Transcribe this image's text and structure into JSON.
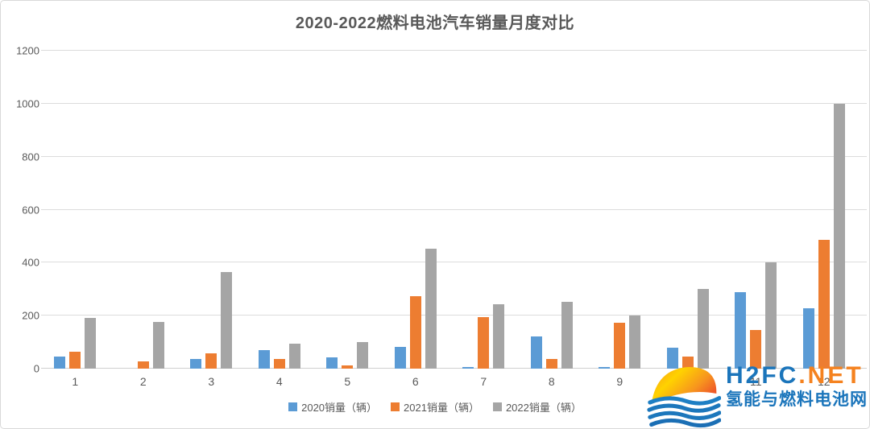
{
  "title": "2020-2022燃料电池汽车销量月度对比",
  "chart_data": {
    "type": "bar",
    "title": "2020-2022燃料电池汽车销量月度对比",
    "categories": [
      "1",
      "2",
      "3",
      "4",
      "5",
      "6",
      "7",
      "8",
      "9",
      "10",
      "11",
      "12"
    ],
    "series": [
      {
        "name": "2020销量（辆）",
        "color": "#5B9BD5",
        "values": [
          45,
          0,
          35,
          70,
          42,
          81,
          6,
          121,
          6,
          78,
          288,
          228
        ]
      },
      {
        "name": "2021销量（辆）",
        "color": "#ED7D31",
        "values": [
          63,
          28,
          57,
          37,
          11,
          272,
          194,
          38,
          173,
          45,
          145,
          485
        ]
      },
      {
        "name": "2022销量（辆）",
        "color": "#A5A5A5",
        "values": [
          190,
          176,
          365,
          94,
          101,
          452,
          243,
          252,
          202,
          300,
          400,
          1000
        ]
      }
    ],
    "xlabel": "",
    "ylabel": "",
    "ylim": [
      0,
      1200
    ],
    "ytick_step": 200,
    "yticks": [
      0,
      200,
      400,
      600,
      800,
      1000,
      1200
    ],
    "grid": true,
    "legend_position": "bottom"
  },
  "watermark": {
    "icon": "sun-over-waves-icon",
    "brand_blue": "H2FC",
    "brand_orange": ".NET",
    "tagline": "氢能与燃料电池网",
    "colors": {
      "blue": "#1B75BB",
      "orange": "#F5821F"
    }
  },
  "style_colors": {
    "title_text": "#595959",
    "axis_text": "#595959",
    "gridline": "#dcdcdc",
    "frame_border": "#d9d9d9"
  }
}
